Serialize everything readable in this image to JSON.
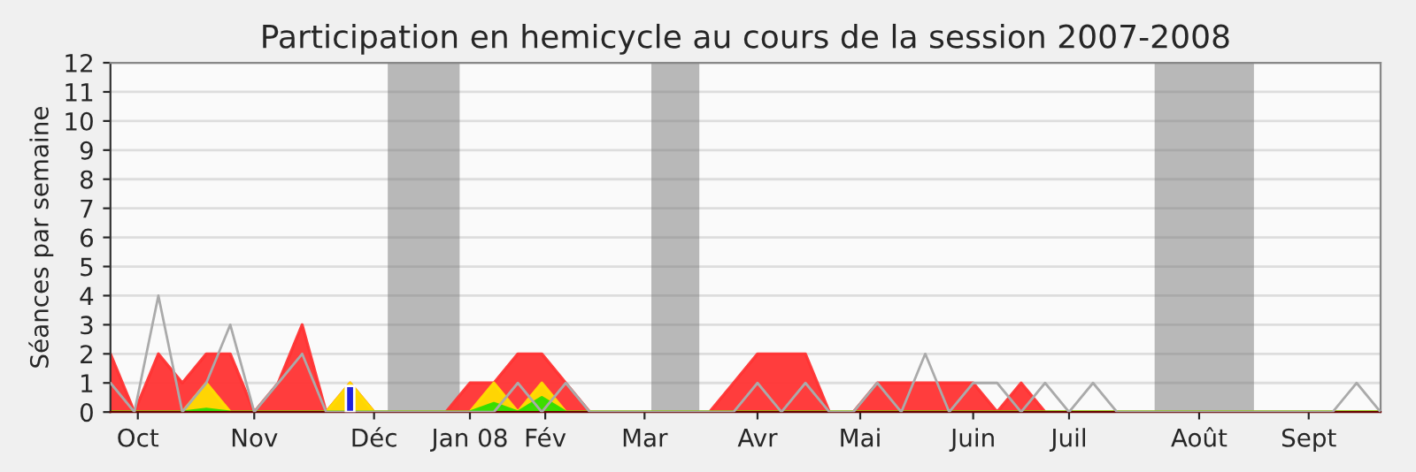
{
  "chart_data": {
    "type": "area",
    "title": "Participation en hemicycle au cours de la session 2007-2008",
    "ylabel": "Séances par semaine",
    "x": [
      "2007-10-01",
      "2007-10-08",
      "2007-10-15",
      "2007-10-22",
      "2007-10-29",
      "2007-11-05",
      "2007-11-12",
      "2007-11-19",
      "2007-11-26",
      "2007-12-03",
      "2007-12-10",
      "2007-12-17",
      "2007-12-24",
      "2007-12-31",
      "2008-01-07",
      "2008-01-14",
      "2008-01-21",
      "2008-01-28",
      "2008-02-04",
      "2008-02-11",
      "2008-02-18",
      "2008-02-25",
      "2008-03-03",
      "2008-03-10",
      "2008-03-17",
      "2008-03-24",
      "2008-03-31",
      "2008-04-07",
      "2008-04-14",
      "2008-04-21",
      "2008-04-28",
      "2008-05-05",
      "2008-05-12",
      "2008-05-19",
      "2008-05-26",
      "2008-06-02",
      "2008-06-09",
      "2008-06-16",
      "2008-06-23",
      "2008-06-30",
      "2008-07-07",
      "2008-07-14",
      "2008-07-21",
      "2008-07-28",
      "2008-08-04",
      "2008-08-11",
      "2008-08-18",
      "2008-08-25",
      "2008-09-01",
      "2008-09-08",
      "2008-09-15",
      "2008-09-22",
      "2008-09-29",
      "2008-10-06"
    ],
    "series": [
      {
        "color": "#ff3333",
        "values": [
          2,
          0,
          2,
          1,
          2,
          2,
          0,
          1,
          3,
          0,
          1,
          0,
          0,
          0,
          0,
          1,
          1,
          2,
          2,
          1,
          0,
          0,
          0,
          0,
          0,
          0,
          1,
          2,
          2,
          2,
          0,
          0,
          1,
          1,
          1,
          1,
          1,
          0,
          1,
          0,
          0,
          0,
          0,
          0,
          0,
          0,
          0,
          0,
          0,
          0,
          0,
          0,
          0,
          0
        ]
      },
      {
        "color": "#ffdd00",
        "values": [
          0,
          0,
          0,
          0,
          1,
          0,
          0,
          0,
          0,
          0,
          1,
          0,
          0,
          0,
          0,
          0,
          1,
          0,
          1,
          0,
          0,
          0,
          0,
          0,
          0,
          0,
          0,
          0,
          0,
          0,
          0,
          0,
          0,
          0,
          0,
          0,
          0,
          0,
          0,
          0,
          0,
          0,
          0,
          0,
          0,
          0,
          0,
          0,
          0,
          0,
          0,
          0,
          0,
          0
        ]
      },
      {
        "color": "#33dd00",
        "values": [
          0,
          0,
          0,
          0,
          0.1,
          0,
          0,
          0,
          0,
          0,
          0,
          0,
          0,
          0,
          0,
          0,
          0.3,
          0,
          0.5,
          0,
          0,
          0,
          0,
          0,
          0,
          0,
          0,
          0,
          0,
          0,
          0,
          0,
          0,
          0,
          0,
          0,
          0,
          0,
          0,
          0,
          0,
          0,
          0,
          0,
          0,
          0,
          0,
          0,
          0,
          0,
          0,
          0,
          0,
          0
        ]
      },
      {
        "type": "bar",
        "color": "#2222dd",
        "values": [
          null,
          null,
          null,
          null,
          null,
          null,
          null,
          null,
          null,
          null,
          0.9,
          null,
          null,
          null,
          null,
          null,
          null,
          null,
          null,
          null,
          null,
          null,
          null,
          null,
          null,
          null,
          null,
          null,
          null,
          null,
          null,
          null,
          null,
          null,
          null,
          null,
          null,
          null,
          null,
          null,
          null,
          null,
          null,
          null,
          null,
          null,
          null,
          null,
          null,
          null,
          null,
          null,
          null,
          null
        ]
      },
      {
        "type": "line",
        "color": "#aaaaaa",
        "values": [
          1,
          0,
          4,
          0,
          1,
          3,
          0,
          1,
          2,
          0,
          0,
          0,
          0,
          0,
          0,
          0,
          0,
          1,
          0,
          1,
          0,
          0,
          0,
          0,
          0,
          0,
          0,
          1,
          0,
          1,
          0,
          0,
          1,
          0,
          2,
          0,
          1,
          1,
          0,
          1,
          0,
          1,
          0,
          0,
          0,
          0,
          0,
          0,
          0,
          0,
          0,
          0,
          1,
          0
        ]
      }
    ],
    "xlim": [
      "2007-10-01",
      "2008-10-06"
    ],
    "xticks": [
      {
        "value": "2007-10-09",
        "label": "Oct"
      },
      {
        "value": "2007-11-12",
        "label": "Nov"
      },
      {
        "value": "2007-12-17",
        "label": "Déc"
      },
      {
        "value": "2008-01-14",
        "label": "Jan 08"
      },
      {
        "value": "2008-02-05",
        "label": "Fév"
      },
      {
        "value": "2008-03-05",
        "label": "Mar"
      },
      {
        "value": "2008-04-07",
        "label": "Avr"
      },
      {
        "value": "2008-05-07",
        "label": "Mai"
      },
      {
        "value": "2008-06-09",
        "label": "Juin"
      },
      {
        "value": "2008-07-07",
        "label": "Juil"
      },
      {
        "value": "2008-08-14",
        "label": "Août"
      },
      {
        "value": "2008-09-15",
        "label": "Sept"
      }
    ],
    "ylim": [
      0,
      12
    ],
    "yticks": [
      0,
      1,
      2,
      3,
      4,
      5,
      6,
      7,
      8,
      9,
      10,
      11,
      12
    ],
    "bands": [
      {
        "axis": "x",
        "from": "2007-12-21",
        "to": "2008-01-11",
        "color": "#b8b8b8"
      },
      {
        "axis": "x",
        "from": "2008-03-07",
        "to": "2008-03-21",
        "color": "#b8b8b8"
      },
      {
        "axis": "x",
        "from": "2008-08-01",
        "to": "2008-08-30",
        "color": "#b8b8b8"
      }
    ],
    "grid": "y"
  }
}
